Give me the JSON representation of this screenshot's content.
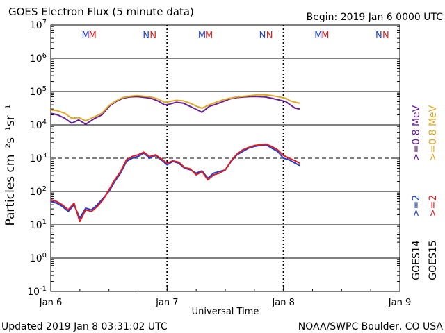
{
  "header": {
    "title": "GOES Electron Flux (5 minute data)",
    "begin": "Begin: 2019 Jan 6 0000 UTC"
  },
  "footer": {
    "updated": "Updated 2019 Jan  8 03:31:02 UTC",
    "credit": "NOAA/SWPC Boulder, CO USA"
  },
  "colors": {
    "goes14": "#1f3fd4",
    "goes15": "#e41a1c",
    "e08_14": "#6a1f9a",
    "e08_15": "#e0a825"
  },
  "chart_data": {
    "type": "line",
    "title": "GOES Electron Flux (5 minute data)",
    "xlabel": "Universal Time",
    "ylabel": "Particles cm⁻²s⁻¹sr⁻¹",
    "xlim": [
      0,
      3
    ],
    "x_ticks": [
      {
        "x": 0,
        "label": "Jan 6"
      },
      {
        "x": 1,
        "label": "Jan 7"
      },
      {
        "x": 2,
        "label": "Jan 8"
      },
      {
        "x": 3,
        "label": "Jan 9"
      }
    ],
    "y_scale": "log",
    "ylim_exp": [
      -1,
      7
    ],
    "y_ticks": [
      {
        "exp": -1,
        "base": "10",
        "sup": "-1"
      },
      {
        "exp": 0,
        "base": "10",
        "sup": "0"
      },
      {
        "exp": 1,
        "base": "10",
        "sup": "1"
      },
      {
        "exp": 2,
        "base": "10",
        "sup": "2"
      },
      {
        "exp": 3,
        "base": "10",
        "sup": "3"
      },
      {
        "exp": 4,
        "base": "10",
        "sup": "4"
      },
      {
        "exp": 5,
        "base": "10",
        "sup": "5"
      },
      {
        "exp": 6,
        "base": "10",
        "sup": "6"
      },
      {
        "exp": 7,
        "base": "10",
        "sup": "7"
      }
    ],
    "threshold_exp": 3,
    "noon_markers": [
      {
        "x": 0.3,
        "letter": "M",
        "satellite": "goes14"
      },
      {
        "x": 0.36,
        "letter": "M",
        "satellite": "goes15"
      },
      {
        "x": 0.82,
        "letter": "N",
        "satellite": "goes14"
      },
      {
        "x": 0.88,
        "letter": "N",
        "satellite": "goes15"
      },
      {
        "x": 1.3,
        "letter": "M",
        "satellite": "goes14"
      },
      {
        "x": 1.36,
        "letter": "M",
        "satellite": "goes15"
      },
      {
        "x": 1.82,
        "letter": "N",
        "satellite": "goes14"
      },
      {
        "x": 1.88,
        "letter": "N",
        "satellite": "goes15"
      },
      {
        "x": 2.3,
        "letter": "M",
        "satellite": "goes14"
      },
      {
        "x": 2.36,
        "letter": "M",
        "satellite": "goes15"
      },
      {
        "x": 2.82,
        "letter": "N",
        "satellite": "goes14"
      },
      {
        "x": 2.88,
        "letter": "N",
        "satellite": "goes15"
      }
    ],
    "legend": {
      "energy_labels": [
        {
          "text": ">=0.8  MeV",
          "color": "#6a1f9a"
        },
        {
          "text": ">=0.8  MeV",
          "color": "#e0a825"
        },
        {
          "text": ">=2",
          "color": "#1f3fd4"
        },
        {
          "text": ">=2",
          "color": "#e41a1c"
        }
      ],
      "satellites": [
        "GOES14",
        "GOES15"
      ]
    },
    "series": [
      {
        "name": "GOES14 >=0.8 MeV",
        "color": "#6a1f9a",
        "x": [
          0,
          0.06,
          0.12,
          0.18,
          0.24,
          0.3,
          0.38,
          0.44,
          0.5,
          0.56,
          0.62,
          0.68,
          0.74,
          0.8,
          0.86,
          0.92,
          0.98,
          1.02,
          1.08,
          1.14,
          1.2,
          1.26,
          1.3,
          1.36,
          1.42,
          1.48,
          1.54,
          1.6,
          1.66,
          1.72,
          1.78,
          1.84,
          1.9,
          1.96,
          2.02,
          2.06,
          2.1,
          2.14
        ],
        "y": [
          4.35,
          4.3,
          4.2,
          4.05,
          4.15,
          4.02,
          4.2,
          4.3,
          4.55,
          4.7,
          4.8,
          4.84,
          4.85,
          4.83,
          4.8,
          4.72,
          4.6,
          4.62,
          4.68,
          4.65,
          4.55,
          4.45,
          4.38,
          4.55,
          4.62,
          4.7,
          4.78,
          4.82,
          4.84,
          4.85,
          4.85,
          4.84,
          4.8,
          4.75,
          4.7,
          4.6,
          4.5,
          4.48
        ]
      },
      {
        "name": "GOES15 >=0.8 MeV",
        "color": "#e0a825",
        "x": [
          0,
          0.06,
          0.12,
          0.18,
          0.24,
          0.3,
          0.38,
          0.44,
          0.5,
          0.56,
          0.62,
          0.68,
          0.74,
          0.8,
          0.86,
          0.92,
          0.98,
          1.02,
          1.08,
          1.14,
          1.2,
          1.26,
          1.3,
          1.36,
          1.42,
          1.48,
          1.54,
          1.6,
          1.66,
          1.72,
          1.78,
          1.84,
          1.9,
          1.96,
          2.02,
          2.06,
          2.1,
          2.14
        ],
        "y": [
          4.45,
          4.42,
          4.35,
          4.2,
          4.22,
          4.12,
          4.25,
          4.35,
          4.58,
          4.72,
          4.82,
          4.86,
          4.88,
          4.86,
          4.84,
          4.78,
          4.68,
          4.7,
          4.74,
          4.72,
          4.65,
          4.55,
          4.5,
          4.6,
          4.68,
          4.75,
          4.8,
          4.84,
          4.86,
          4.88,
          4.9,
          4.9,
          4.88,
          4.84,
          4.8,
          4.72,
          4.68,
          4.65
        ]
      },
      {
        "name": "GOES14 >=2 MeV",
        "color": "#1f3fd4",
        "x": [
          0,
          0.05,
          0.1,
          0.15,
          0.2,
          0.25,
          0.3,
          0.35,
          0.4,
          0.45,
          0.5,
          0.55,
          0.6,
          0.65,
          0.7,
          0.75,
          0.8,
          0.85,
          0.9,
          0.95,
          1.0,
          1.05,
          1.1,
          1.15,
          1.2,
          1.25,
          1.3,
          1.35,
          1.4,
          1.45,
          1.5,
          1.55,
          1.6,
          1.65,
          1.7,
          1.75,
          1.8,
          1.85,
          1.9,
          1.95,
          2.0,
          2.05,
          2.1,
          2.14
        ],
        "y": [
          1.7,
          1.65,
          1.55,
          1.4,
          1.6,
          1.2,
          1.5,
          1.45,
          1.6,
          1.8,
          2.0,
          2.3,
          2.55,
          2.9,
          3.0,
          3.05,
          3.15,
          3.0,
          3.08,
          2.95,
          2.8,
          2.9,
          2.85,
          2.7,
          2.65,
          2.55,
          2.62,
          2.4,
          2.55,
          2.6,
          2.65,
          2.9,
          3.1,
          3.2,
          3.3,
          3.35,
          3.38,
          3.4,
          3.3,
          3.2,
          3.0,
          2.95,
          2.85,
          2.78
        ]
      },
      {
        "name": "GOES15 >=2 MeV",
        "color": "#e41a1c",
        "x": [
          0,
          0.05,
          0.1,
          0.15,
          0.2,
          0.25,
          0.3,
          0.35,
          0.4,
          0.45,
          0.5,
          0.55,
          0.6,
          0.65,
          0.7,
          0.75,
          0.8,
          0.85,
          0.9,
          0.95,
          1.0,
          1.05,
          1.1,
          1.15,
          1.2,
          1.25,
          1.3,
          1.35,
          1.4,
          1.45,
          1.5,
          1.55,
          1.6,
          1.65,
          1.7,
          1.75,
          1.8,
          1.85,
          1.9,
          1.95,
          2.0,
          2.05,
          2.1,
          2.14
        ],
        "y": [
          1.75,
          1.7,
          1.6,
          1.45,
          1.65,
          1.1,
          1.45,
          1.4,
          1.55,
          1.75,
          2.05,
          2.35,
          2.6,
          2.95,
          3.05,
          3.1,
          3.18,
          3.05,
          3.1,
          2.98,
          2.85,
          2.92,
          2.88,
          2.72,
          2.68,
          2.5,
          2.6,
          2.35,
          2.5,
          2.55,
          2.65,
          2.92,
          3.12,
          3.25,
          3.32,
          3.38,
          3.4,
          3.42,
          3.35,
          3.25,
          3.08,
          3.0,
          2.92,
          2.85
        ]
      }
    ]
  }
}
